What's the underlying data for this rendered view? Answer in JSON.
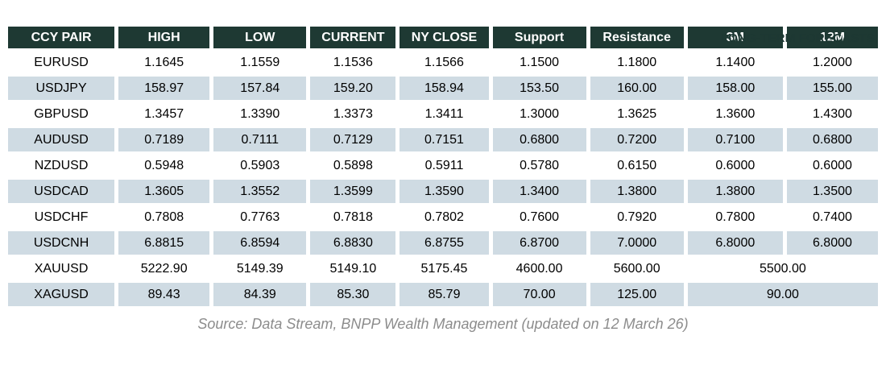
{
  "forecast_label": "LONG-TERM FORECASTS",
  "table": {
    "headers": [
      "CCY PAIR",
      "HIGH",
      "LOW",
      "CURRENT",
      "NY CLOSE",
      "Support",
      "Resistance",
      "3M",
      "12M"
    ],
    "rows": [
      {
        "pair": "EURUSD",
        "values": [
          "1.1645",
          "1.1559",
          "1.1536",
          "1.1566",
          "1.1500",
          "1.1800",
          "1.1400",
          "1.2000"
        ],
        "merged_forecast": null
      },
      {
        "pair": "USDJPY",
        "values": [
          "158.97",
          "157.84",
          "159.20",
          "158.94",
          "153.50",
          "160.00",
          "158.00",
          "155.00"
        ],
        "merged_forecast": null
      },
      {
        "pair": "GBPUSD",
        "values": [
          "1.3457",
          "1.3390",
          "1.3373",
          "1.3411",
          "1.3000",
          "1.3625",
          "1.3600",
          "1.4300"
        ],
        "merged_forecast": null
      },
      {
        "pair": "AUDUSD",
        "values": [
          "0.7189",
          "0.7111",
          "0.7129",
          "0.7151",
          "0.6800",
          "0.7200",
          "0.7100",
          "0.6800"
        ],
        "merged_forecast": null
      },
      {
        "pair": "NZDUSD",
        "values": [
          "0.5948",
          "0.5903",
          "0.5898",
          "0.5911",
          "0.5780",
          "0.6150",
          "0.6000",
          "0.6000"
        ],
        "merged_forecast": null
      },
      {
        "pair": "USDCAD",
        "values": [
          "1.3605",
          "1.3552",
          "1.3599",
          "1.3590",
          "1.3400",
          "1.3800",
          "1.3800",
          "1.3500"
        ],
        "merged_forecast": null
      },
      {
        "pair": "USDCHF",
        "values": [
          "0.7808",
          "0.7763",
          "0.7818",
          "0.7802",
          "0.7600",
          "0.7920",
          "0.7800",
          "0.7400"
        ],
        "merged_forecast": null
      },
      {
        "pair": "USDCNH",
        "values": [
          "6.8815",
          "6.8594",
          "6.8830",
          "6.8755",
          "6.8700",
          "7.0000",
          "6.8000",
          "6.8000"
        ],
        "merged_forecast": null
      },
      {
        "pair": "XAUUSD",
        "values": [
          "5222.90",
          "5149.39",
          "5149.10",
          "5175.45",
          "4600.00",
          "5600.00"
        ],
        "merged_forecast": "5500.00"
      },
      {
        "pair": "XAGUSD",
        "values": [
          "89.43",
          "84.39",
          "85.30",
          "85.79",
          "70.00",
          "125.00"
        ],
        "merged_forecast": "90.00"
      }
    ]
  },
  "source": "Source: Data Stream, BNPP Wealth Management (updated on 12 March 26)",
  "colors": {
    "header_bg": "#1e3933",
    "header_text": "#ffffff",
    "row_alt_bg": "#cfdbe3",
    "label_color": "#1d3833",
    "source_color": "#8c8c8c"
  }
}
